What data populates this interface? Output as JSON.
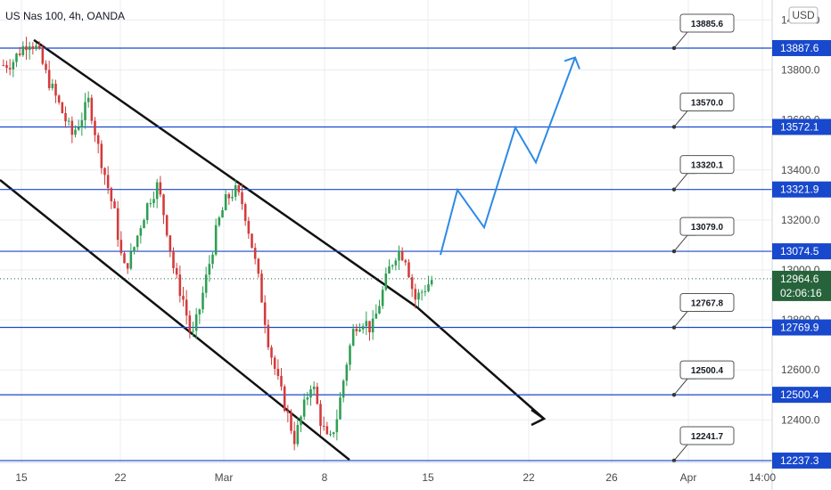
{
  "header": {
    "symbol_title": "US Nas 100, 4h, OANDA",
    "currency_button": "USD"
  },
  "colors": {
    "level_line": "#1848cc",
    "price_tag": "#1848cc",
    "current_price_tag": "#26633a",
    "up_candle": "#2e9e53",
    "down_candle": "#d33b3b",
    "projection": "#2c8ae6",
    "channel": "#111111",
    "grid": "#e9ecf2"
  },
  "chart_data": {
    "type": "candlestick",
    "title": "US Nas 100, 4h, OANDA",
    "ylim": [
      12230,
      14080
    ],
    "y_ticks": [
      "12400.0",
      "12600.0",
      "12800.0",
      "13000.0",
      "13200.0",
      "13400.0",
      "13600.0",
      "13800.0",
      "14000.0"
    ],
    "x_ticks": [
      "15",
      "22",
      "Mar",
      "8",
      "15",
      "22",
      "26",
      "Apr",
      "14:00"
    ],
    "levels": [
      {
        "price": 13887.6,
        "tag": "13887.6",
        "note": "13885.6"
      },
      {
        "price": 13572.1,
        "tag": "13572.1",
        "note": "13570.0"
      },
      {
        "price": 13321.9,
        "tag": "13321.9",
        "note": "13320.1"
      },
      {
        "price": 13074.5,
        "tag": "13074.5",
        "note": "13079.0"
      },
      {
        "price": 12769.9,
        "tag": "12769.9",
        "note": "12767.8"
      },
      {
        "price": 12500.4,
        "tag": "12500.4",
        "note": "12500.4"
      },
      {
        "price": 12237.3,
        "tag": "12237.3",
        "note": "12241.7"
      }
    ],
    "current_price": {
      "value": 12964.6,
      "label": "12964.6",
      "countdown": "02:06:16"
    },
    "channel_upper": [
      [
        13920,
        12850
      ]
    ],
    "channel_lower": [
      [
        13360,
        12240
      ]
    ],
    "projection_path": [
      13060,
      13320,
      13170,
      13570,
      13430,
      13850
    ],
    "close_path": [
      13820,
      13830,
      13880,
      13920,
      13880,
      13780,
      13700,
      13620,
      13540,
      13600,
      13680,
      13500,
      13360,
      13220,
      13000,
      13060,
      13180,
      13280,
      13340,
      13180,
      12980,
      12880,
      12720,
      12860,
      13020,
      13180,
      13280,
      13320,
      13260,
      13100,
      12920,
      12700,
      12560,
      12440,
      12320,
      12440,
      12560,
      12400,
      12300,
      12420,
      12620,
      12780,
      12800,
      12760,
      12880,
      13000,
      13080,
      13050,
      12880,
      12920,
      12960
    ]
  }
}
